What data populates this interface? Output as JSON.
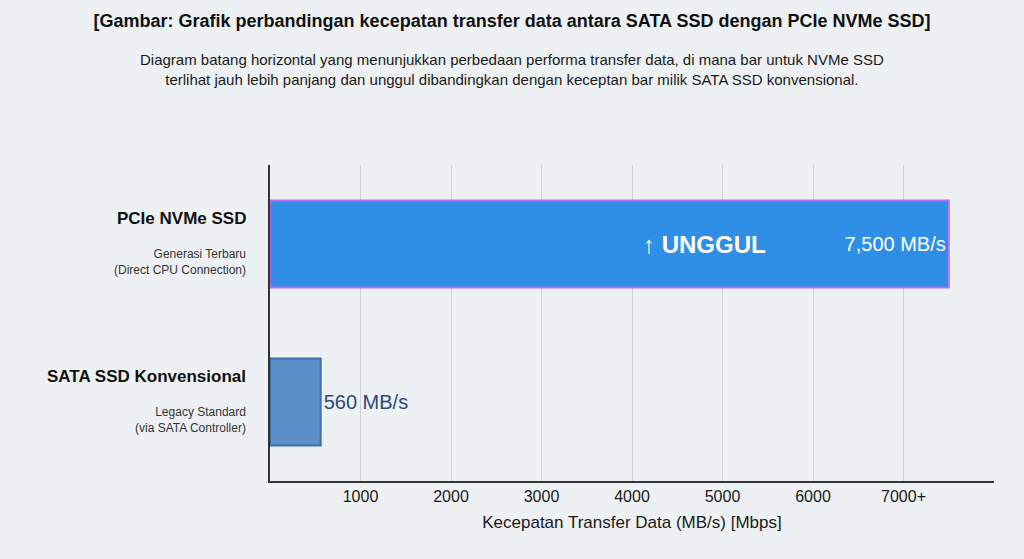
{
  "chart_data": {
    "type": "bar",
    "orientation": "horizontal",
    "title": "[Gambar: Grafik perbandingan kecepatan transfer data antara SATA SSD dengan PCIe NVMe SSD]",
    "subtitle": "Diagram batang horizontal yang menunjukkan perbedaan performa transfer data, di mana bar untuk NVMe SSD terlihat jauh lebih panjang dan unggul dibandingkan dengan keceptan bar milik SATA SSD konvensional.",
    "x_label": "Kecepatan Transfer Data (MB/s) [Mbps]",
    "categories": [
      "PCIe NVMe SSD",
      "SATA SSD Konvensional"
    ],
    "category_notes": [
      "Generasi Terbaru (Direct CPU Connection)",
      "Legacy Standard (via SATA Controller)"
    ],
    "values": [
      7500,
      560
    ],
    "value_labels": [
      "7,500 MB/s",
      "560 MB/s"
    ],
    "colors": [
      "#2f8fe6",
      "#5b8fc9"
    ],
    "data_labels": true,
    "annotations": [
      {
        "text": "↑ UNGGUL",
        "category": "PCIe NVMe SSD"
      }
    ],
    "xlim": [
      0,
      8000
    ],
    "xticks": [
      1000,
      2000,
      3000,
      4000,
      5000,
      6000,
      {
        "value": 7000,
        "label": "7000+"
      }
    ],
    "grid": true,
    "tick_labels": "x"
  }
}
